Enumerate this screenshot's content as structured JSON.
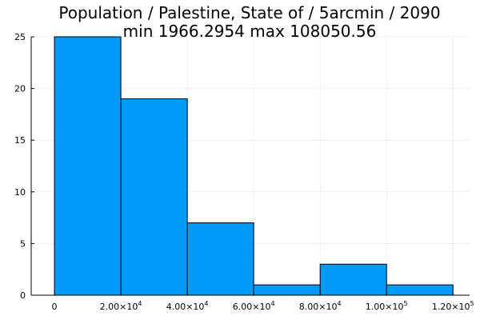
{
  "chart_data": {
    "type": "bar",
    "title": "Population / Palestine, State of / 5arcmin / 2090",
    "subtitle": "min 1966.2954  max 108050.56",
    "xlabel": "",
    "ylabel": "",
    "bins": [
      {
        "x0": 0,
        "x1": 20000,
        "value": 25
      },
      {
        "x0": 20000,
        "x1": 40000,
        "value": 19
      },
      {
        "x0": 40000,
        "x1": 60000,
        "value": 7
      },
      {
        "x0": 60000,
        "x1": 80000,
        "value": 1
      },
      {
        "x0": 80000,
        "x1": 100000,
        "value": 3
      },
      {
        "x0": 100000,
        "x1": 120000,
        "value": 1
      }
    ],
    "xlim": [
      -7000,
      125000
    ],
    "ylim": [
      0,
      25
    ],
    "x_ticks": [
      {
        "value": 0,
        "mantissa": "0",
        "exponent": ""
      },
      {
        "value": 20000,
        "mantissa": "2.00×10",
        "exponent": "4"
      },
      {
        "value": 40000,
        "mantissa": "4.00×10",
        "exponent": "4"
      },
      {
        "value": 60000,
        "mantissa": "6.00×10",
        "exponent": "4"
      },
      {
        "value": 80000,
        "mantissa": "8.00×10",
        "exponent": "4"
      },
      {
        "value": 100000,
        "mantissa": "1.00×10",
        "exponent": "5"
      },
      {
        "value": 120000,
        "mantissa": "1.20×10",
        "exponent": "5"
      }
    ],
    "y_ticks": [
      0,
      5,
      10,
      15,
      20,
      25
    ],
    "grid": true,
    "bar_color": "#009af9",
    "edge_color": "#000000"
  }
}
